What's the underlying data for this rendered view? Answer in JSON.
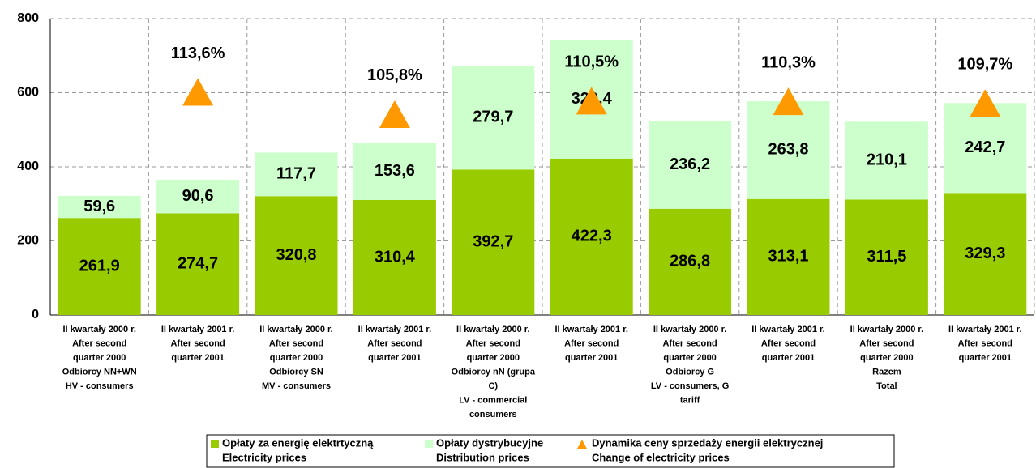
{
  "chart_data": {
    "type": "stacked_bar",
    "categories": [
      [
        "II kwartały 2000 r.",
        "After second",
        "quarter 2000",
        "Odbiorcy NN+WN",
        "HV - consumers"
      ],
      [
        "II kwartały 2001 r.",
        "After second",
        "quarter 2001"
      ],
      [
        "II kwartały 2000 r.",
        "After second",
        "quarter 2000",
        "Odbiorcy SN",
        "MV - consumers"
      ],
      [
        "II kwartały 2001 r.",
        "After second",
        "quarter 2001"
      ],
      [
        "II kwartały 2000 r.",
        "After second",
        "quarter 2000",
        "Odbiorcy nN (grupa",
        "C)",
        "LV - commercial",
        "consumers"
      ],
      [
        "II kwartały 2001 r.",
        "After second",
        "quarter 2001"
      ],
      [
        "II kwartały 2000 r.",
        "After second",
        "quarter 2000",
        "Odbiorcy G",
        "LV - consumers, G",
        "tariff"
      ],
      [
        "II kwartały 2001 r.",
        "After second",
        "quarter 2001"
      ],
      [
        "II kwartały 2000 r.",
        "After second",
        "quarter 2000",
        "Razem",
        "Total"
      ],
      [
        "II kwartały 2001 r.",
        "After second",
        "quarter 2001"
      ]
    ],
    "series": [
      {
        "name": [
          "Opłaty za energię elektrtyczną",
          "Electricity prices"
        ],
        "color": "#99cc00",
        "values": [
          261.9,
          274.7,
          320.8,
          310.4,
          392.7,
          422.3,
          286.8,
          313.1,
          311.5,
          329.3
        ],
        "value_labels": [
          "261,9",
          "274,7",
          "320,8",
          "310,4",
          "392,7",
          "422,3",
          "286,8",
          "313,1",
          "311,5",
          "329,3"
        ]
      },
      {
        "name": [
          "Opłaty dystrybucyjne",
          "Distribution prices"
        ],
        "color": "#ccffcc",
        "values": [
          59.6,
          90.6,
          117.7,
          153.6,
          279.7,
          320.4,
          236.2,
          263.8,
          210.1,
          242.7
        ],
        "value_labels": [
          "59,6",
          "90,6",
          "117,7",
          "153,6",
          "279,7",
          "320,4",
          "236,2",
          "263,8",
          "210,1",
          "242,7"
        ]
      },
      {
        "name": [
          "Dynamika ceny sprzedaży energii elektrycznej",
          "Change of electricity prices"
        ],
        "color": "#ff9900",
        "type": "marker",
        "axis": "y2",
        "values": [
          null,
          113.6,
          null,
          105.8,
          null,
          110.5,
          null,
          110.3,
          null,
          109.7
        ],
        "value_labels": [
          null,
          "113,6%",
          null,
          "105,8%",
          null,
          "110,5%",
          null,
          "110,3%",
          null,
          "109,7%"
        ]
      }
    ],
    "ylim": [
      0,
      800
    ],
    "yticks": [
      0,
      200,
      400,
      600,
      800
    ],
    "y2lim": [
      35.6,
      139.6
    ],
    "grid": true,
    "legend": "bottom"
  }
}
